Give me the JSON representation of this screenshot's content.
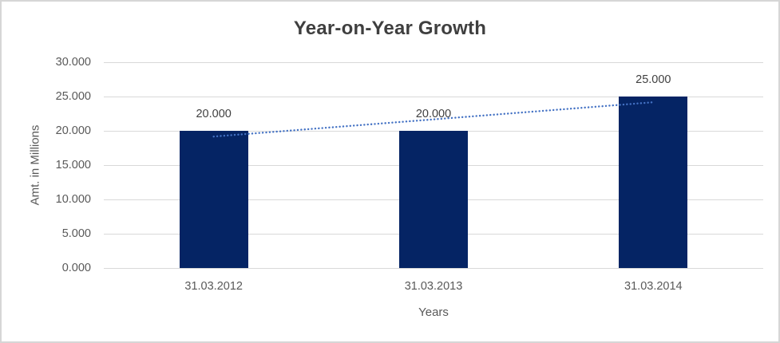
{
  "chart_data": {
    "type": "bar",
    "title": "Year-on-Year Growth",
    "xlabel": "Years",
    "ylabel": "Amt. in Millions",
    "categories": [
      "31.03.2012",
      "31.03.2013",
      "31.03.2014"
    ],
    "values": [
      20000,
      20000,
      25000
    ],
    "data_labels": [
      "20.000",
      "20.000",
      "25.000"
    ],
    "y_ticks": {
      "values": [
        0,
        5000,
        10000,
        15000,
        20000,
        25000,
        30000
      ],
      "labels": [
        "0.000",
        "5.000",
        "10.000",
        "15.000",
        "20.000",
        "25.000",
        "30.000"
      ]
    },
    "ylim": [
      0,
      30000
    ],
    "grid": true,
    "legend": "none",
    "trendline": {
      "type": "linear",
      "style": "dotted",
      "start_value": 19167,
      "end_value": 24167
    }
  },
  "theme": {
    "background": "#ffffff",
    "border": "#d6d6d6",
    "bar_fill": "#052464",
    "trendline": "#4472c4",
    "gridline": "#d9d9d9",
    "title_text": "#3f3f3f",
    "axis_text": "#595959",
    "data_label_text": "#404040"
  }
}
